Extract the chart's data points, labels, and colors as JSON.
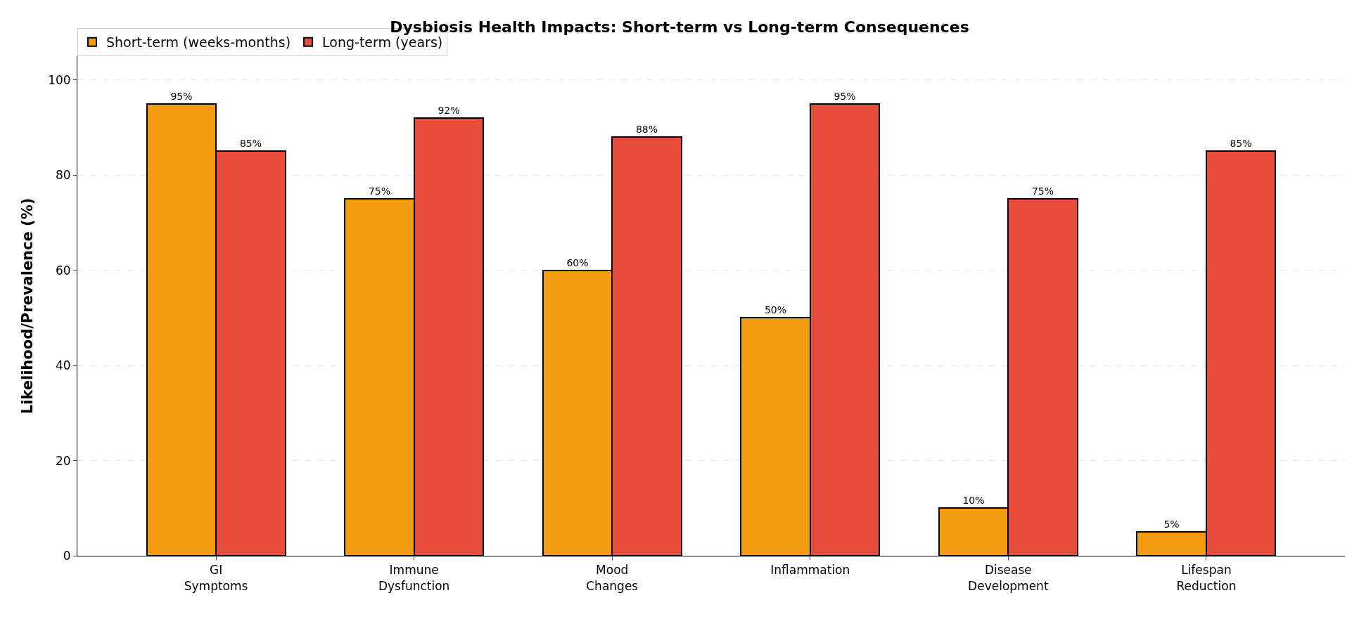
{
  "chart_data": {
    "type": "bar",
    "title": "Dysbiosis Health Impacts: Short-term vs Long-term Consequences",
    "ylabel": "Likelihood/Prevalence (%)",
    "categories": [
      "GI\nSymptoms",
      "Immune\nDysfunction",
      "Mood\nChanges",
      "Inflammation",
      "Disease\nDevelopment",
      "Lifespan\nReduction"
    ],
    "series": [
      {
        "name": "Short-term (weeks-months)",
        "color": "#f39c12",
        "values": [
          95,
          75,
          60,
          50,
          10,
          5
        ],
        "value_labels": [
          "95%",
          "75%",
          "60%",
          "50%",
          "10%",
          "5%"
        ]
      },
      {
        "name": "Long-term (years)",
        "color": "#e74c3c",
        "values": [
          85,
          92,
          88,
          95,
          75,
          85
        ],
        "value_labels": [
          "85%",
          "92%",
          "88%",
          "95%",
          "75%",
          "85%"
        ]
      }
    ],
    "ylim": [
      0,
      105
    ],
    "yticks": [
      0,
      20,
      40,
      60,
      80,
      100
    ],
    "grid": "y",
    "legend": "top left"
  }
}
